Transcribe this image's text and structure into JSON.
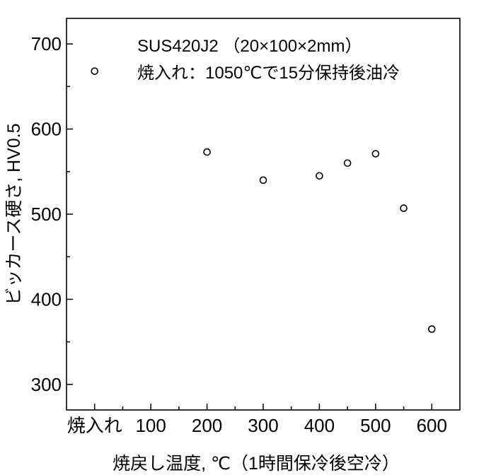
{
  "chart_data": {
    "type": "scatter",
    "xlabel": "焼戻し温度, ℃（1時間保冷後空冷）",
    "ylabel": "ビッカース硬さ, HV0.5",
    "xlim": [
      -50,
      650
    ],
    "ylim": [
      270,
      730
    ],
    "x_ticks": [
      {
        "value": 0,
        "label": "焼入れ"
      },
      {
        "value": 100,
        "label": "100"
      },
      {
        "value": 200,
        "label": "200"
      },
      {
        "value": 300,
        "label": "300"
      },
      {
        "value": 400,
        "label": "400"
      },
      {
        "value": 500,
        "label": "500"
      },
      {
        "value": 600,
        "label": "600"
      }
    ],
    "x_minor_ticks": [
      50,
      150,
      250,
      350,
      450,
      550
    ],
    "y_ticks": [
      300,
      400,
      500,
      600,
      700
    ],
    "y_minor_ticks": [
      350,
      450,
      550,
      650
    ],
    "annotations": [
      "SUS420J2 （20×100×2mm）",
      "焼入れ：1050℃で15分保持後油冷"
    ],
    "grid": false,
    "legend": "none",
    "marker": "open-circle",
    "points": [
      {
        "x": 0,
        "x_label": "焼入れ",
        "y": 668
      },
      {
        "x": 200,
        "y": 573
      },
      {
        "x": 300,
        "y": 540
      },
      {
        "x": 400,
        "y": 545
      },
      {
        "x": 450,
        "y": 560
      },
      {
        "x": 500,
        "y": 571
      },
      {
        "x": 550,
        "y": 507
      },
      {
        "x": 600,
        "y": 365
      }
    ]
  }
}
